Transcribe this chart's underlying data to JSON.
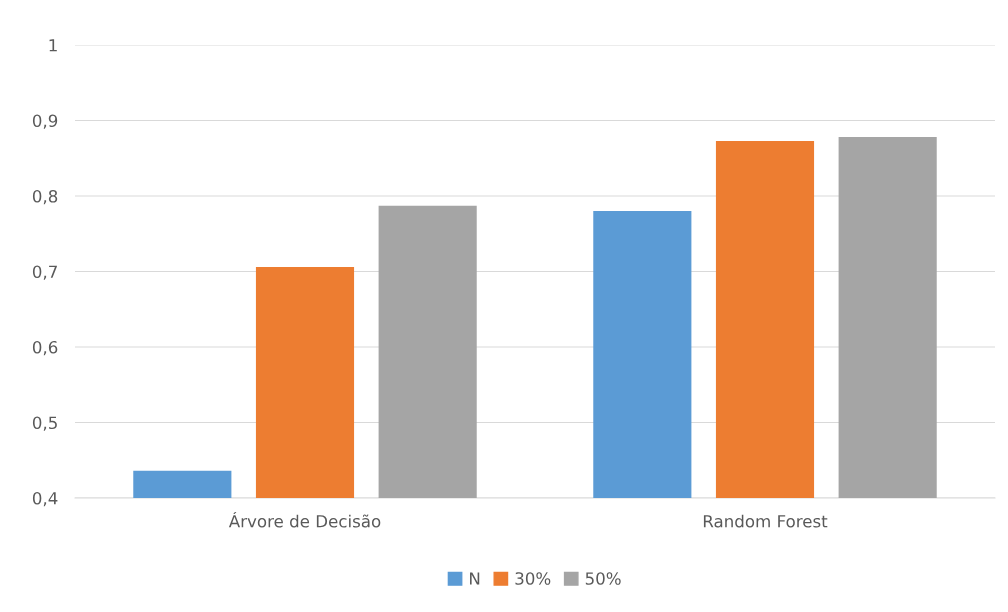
{
  "chart_data": {
    "type": "bar",
    "categories": [
      "Árvore de Decisão",
      "Random Forest"
    ],
    "series": [
      {
        "name": "N",
        "color": "#5b9bd5",
        "values": [
          0.436,
          0.78
        ]
      },
      {
        "name": "30%",
        "color": "#ed7d31",
        "values": [
          0.706,
          0.873
        ]
      },
      {
        "name": "50%",
        "color": "#a5a5a5",
        "values": [
          0.787,
          0.878
        ]
      }
    ],
    "ylim": [
      0.4,
      1
    ],
    "yticks": [
      {
        "value": 0.4,
        "label": "0,4"
      },
      {
        "value": 0.5,
        "label": "0,5"
      },
      {
        "value": 0.6,
        "label": "0,6"
      },
      {
        "value": 0.7,
        "label": "0,7"
      },
      {
        "value": 0.8,
        "label": "0,8"
      },
      {
        "value": 0.9,
        "label": "0,9"
      },
      {
        "value": 1,
        "label": "1"
      }
    ],
    "grid": "y",
    "legend": "bottom"
  }
}
